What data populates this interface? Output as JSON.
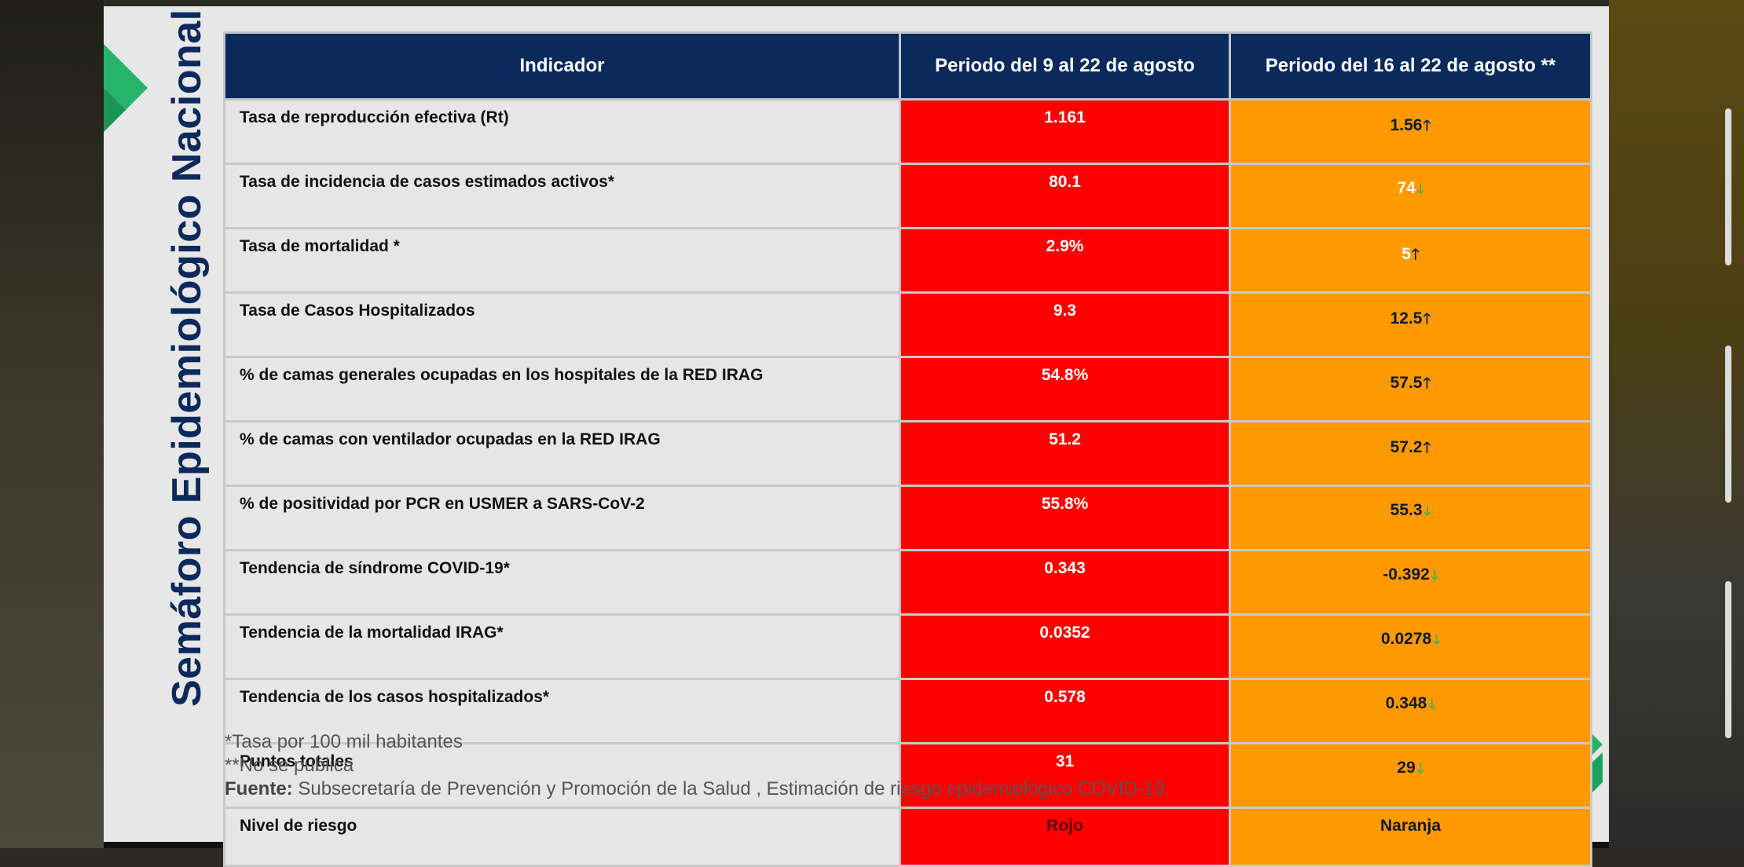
{
  "title": "Semáforo Epidemiológico Nacional",
  "table": {
    "headers": [
      "Indicador",
      "Periodo del 9 al 22 de agosto",
      "Periodo  del 16 al 22 de agosto **"
    ],
    "rows": [
      {
        "indicator": "Tasa de reproducción efectiva (Rt)",
        "period1": "1.161",
        "period2": "1.56",
        "trend": "up"
      },
      {
        "indicator": "Tasa de incidencia de casos estimados activos*",
        "period1": "80.1",
        "period2": "74",
        "trend": "down"
      },
      {
        "indicator": "Tasa de mortalidad *",
        "period1": "2.9%",
        "period2": "5",
        "trend": "up"
      },
      {
        "indicator": "Tasa de Casos Hospitalizados",
        "period1": "9.3",
        "period2": "12.5",
        "trend": "up"
      },
      {
        "indicator": "% de camas generales ocupadas en los hospitales de la RED IRAG",
        "period1": "54.8%",
        "period2": "57.5",
        "trend": "up"
      },
      {
        "indicator": "% de camas con ventilador ocupadas en la RED IRAG",
        "period1": "51.2",
        "period2": "57.2",
        "trend": "up"
      },
      {
        "indicator": "% de positividad por PCR en USMER a SARS-CoV-2",
        "period1": "55.8%",
        "period2": "55.3",
        "trend": "down"
      },
      {
        "indicator": "Tendencia de síndrome COVID-19*",
        "period1": "0.343",
        "period2": "-0.392",
        "trend": "down"
      },
      {
        "indicator": "Tendencia de la mortalidad IRAG*",
        "period1": "0.0352",
        "period2": "0.0278",
        "trend": "down"
      },
      {
        "indicator": "Tendencia de los casos hospitalizados*",
        "period1": "0.578",
        "period2": "0.348",
        "trend": "down"
      },
      {
        "indicator": "Puntos totales",
        "period1": "31",
        "period2": "29",
        "trend": "down"
      },
      {
        "indicator": "Nivel de riesgo",
        "period1": "Rojo",
        "period2": "Naranja",
        "trend": "none"
      }
    ]
  },
  "arrows": {
    "up": "🡑",
    "down": "🡓"
  },
  "notes": {
    "line1": "*Tasa por 100 mil habitantes",
    "line2": "**No se publica",
    "source_label": "Fuente:",
    "source_text": " Subsecretaría de Prevención y Promoción de la Salud , Estimación de riesgo epidemiológico COVID-19."
  },
  "colors": {
    "header_bg": "#0b2a5b",
    "red_cell": "#fe0000",
    "orange_cell": "#ff9900",
    "green_accent": "#2fb85f"
  }
}
